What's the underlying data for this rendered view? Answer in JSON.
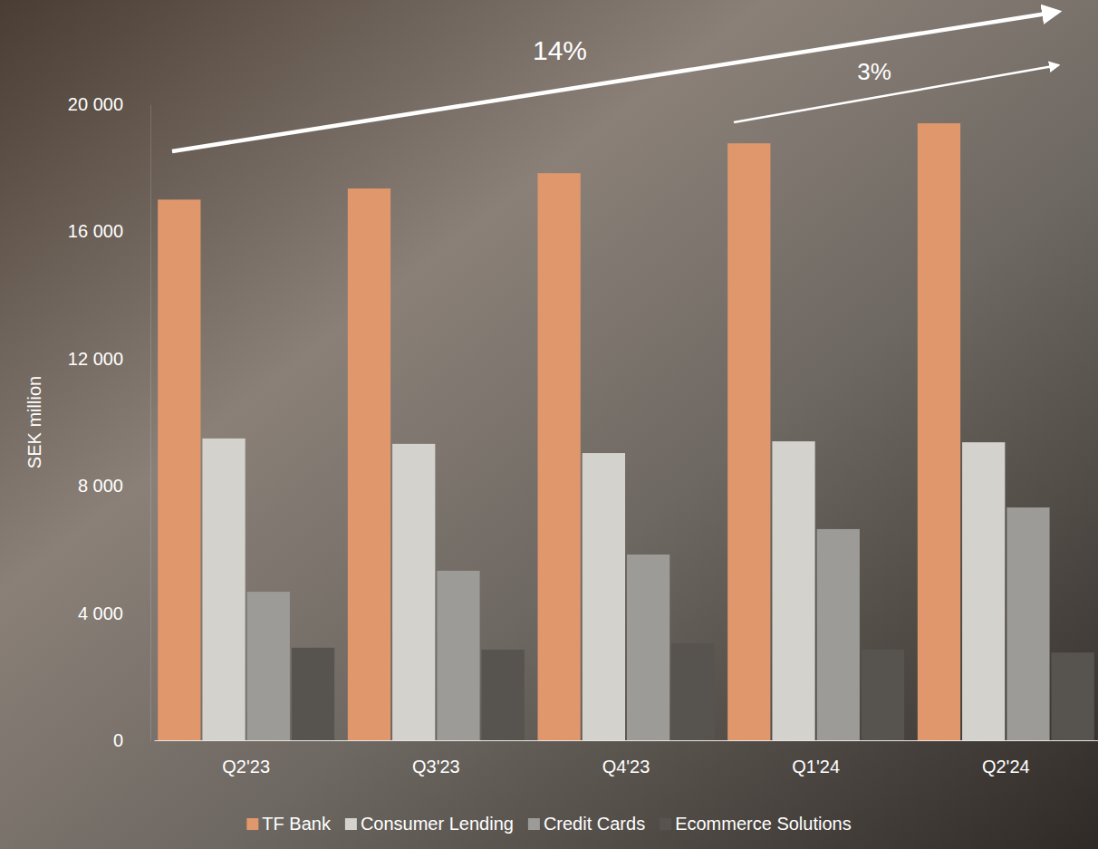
{
  "chart_data": {
    "type": "bar",
    "y_label": "SEK million",
    "categories": [
      "Q2'23",
      "Q3'23",
      "Q4'23",
      "Q1'24",
      "Q2'24"
    ],
    "series": [
      {
        "name": "TF Bank",
        "color": "#e0976b",
        "values": [
          17000,
          17350,
          17830,
          18770,
          19400
        ]
      },
      {
        "name": "Consumer Lending",
        "color": "#d3d2cd",
        "values": [
          9490,
          9320,
          9030,
          9400,
          9370
        ]
      },
      {
        "name": "Credit Cards",
        "color": "#9c9b97",
        "values": [
          4670,
          5330,
          5840,
          6640,
          7320
        ]
      },
      {
        "name": "Ecommerce Solutions",
        "color": "#57544f",
        "values": [
          2910,
          2850,
          3050,
          2850,
          2760
        ]
      }
    ],
    "ylim": [
      0,
      20000
    ],
    "yticks": [
      {
        "value": 0,
        "label": "0"
      },
      {
        "value": 4000,
        "label": "4 000"
      },
      {
        "value": 8000,
        "label": "8 000"
      },
      {
        "value": 12000,
        "label": "12 000"
      },
      {
        "value": 16000,
        "label": "16 000"
      },
      {
        "value": 20000,
        "label": "20 000"
      }
    ],
    "annotations": [
      "14%",
      "3%"
    ],
    "legend": "bottom",
    "grid": false
  }
}
